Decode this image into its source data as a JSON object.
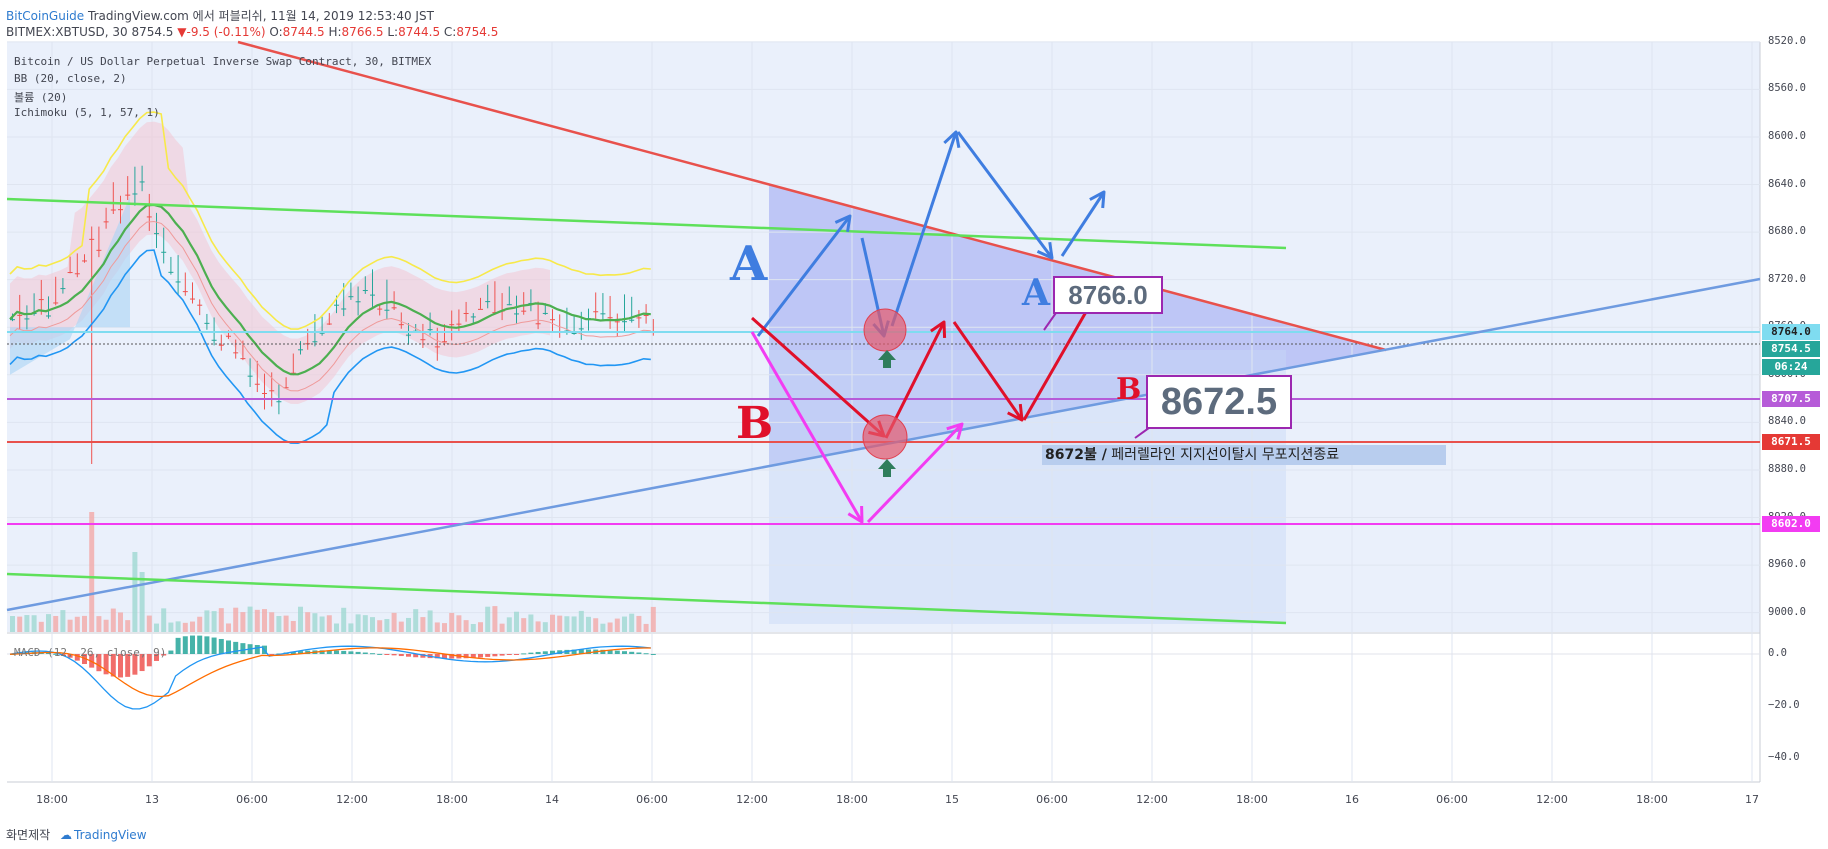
{
  "header": {
    "author": "BitCoinGuide",
    "published": "TradingView.com 에서 퍼블리쉬, 11월 14, 2019 12:53:40 JST",
    "symbol": "BITMEX:XBTUSD, 30",
    "last": "8754.5",
    "change": "-9.5 (-0.11%)",
    "o": "8744.5",
    "h": "8766.5",
    "l": "8744.5",
    "c": "8754.5"
  },
  "legend": {
    "title": "Bitcoin / US Dollar Perpetual Inverse Swap Contract, 30, BITMEX",
    "bb": "BB (20, close, 2)",
    "volume": "볼륨 (20)",
    "ichimoku": "Ichimoku (5, 1, 57, 1)",
    "macd": "MACD (12, 26, close, 9)"
  },
  "axis": {
    "price_ticks": [
      "9000.0",
      "8960.0",
      "8920.0",
      "8880.0",
      "8840.0",
      "8800.0",
      "8760.0",
      "8720.0",
      "8680.0",
      "8640.0",
      "8600.0",
      "8560.0",
      "8520.0"
    ],
    "macd_ticks": [
      "0.0",
      "−20.0",
      "−40.0"
    ],
    "time_ticks": [
      "18:00",
      "13",
      "06:00",
      "12:00",
      "18:00",
      "14",
      "06:00",
      "12:00",
      "18:00",
      "15",
      "06:00",
      "12:00",
      "18:00",
      "16",
      "06:00",
      "12:00",
      "18:00",
      "17"
    ]
  },
  "price_tags": {
    "t8764": "8764.0",
    "t8754": "8754.5",
    "countdown": "06:24",
    "t8707": "8707.5",
    "t8671": "8671.5",
    "t8602": "8602.0"
  },
  "annotations": {
    "letter_a": "A",
    "letter_b": "B",
    "callout_a_letter": "A",
    "callout_a": "8766.0",
    "callout_b_letter": "B",
    "callout_b": "8672.5",
    "note_bold": "8672불 /",
    "note_text": "페러렐라인 지지선이탈시 무포지션종료"
  },
  "footer": {
    "made": "화면제작",
    "brand": "TradingView"
  },
  "colors": {
    "bg": "#e9effa",
    "up": "#26a69a",
    "down": "#ef5350",
    "trend_red": "#e8514c",
    "trend_blue": "#6f9be0",
    "green_line": "#5ee05a",
    "magenta": "#f23cf2",
    "purple": "#b65bd8",
    "arrow_blue": "#3f7de0",
    "arrow_red": "#e0102a"
  },
  "chart_data": {
    "type": "candlestick",
    "ylim": [
      8505,
      9005
    ],
    "levels": [
      8764.0,
      8754.5,
      8707.5,
      8671.5,
      8602.0
    ],
    "candles_ohlc_sample": [
      [
        8750,
        8765,
        8740,
        8755
      ],
      [
        8755,
        8770,
        8745,
        8760
      ],
      [
        8760,
        8765,
        8720,
        8725
      ],
      [
        8725,
        8735,
        8620,
        8650
      ],
      [
        8650,
        8700,
        8625,
        8690
      ],
      [
        8690,
        8760,
        8685,
        8750
      ],
      [
        8750,
        8800,
        8745,
        8790
      ],
      [
        8790,
        8845,
        8780,
        8830
      ],
      [
        8830,
        8835,
        8760,
        8770
      ],
      [
        8770,
        8790,
        8720,
        8730
      ],
      [
        8730,
        8780,
        8725,
        8770
      ],
      [
        8770,
        8805,
        8750,
        8760
      ],
      [
        8760,
        8775,
        8730,
        8750
      ],
      [
        8750,
        8780,
        8740,
        8770
      ],
      [
        8770,
        8790,
        8740,
        8745
      ],
      [
        8745,
        8770,
        8735,
        8760
      ],
      [
        8760,
        8775,
        8740,
        8745
      ],
      [
        8745,
        8765,
        8740,
        8754.5
      ]
    ],
    "projections": {
      "scenario_a": [
        8752,
        8862,
        8764,
        8935,
        8832,
        8885
      ],
      "scenario_b": [
        8772,
        8672,
        8770,
        8710,
        8766
      ],
      "scenario_b2": [
        8762,
        8602,
        8682
      ]
    }
  }
}
